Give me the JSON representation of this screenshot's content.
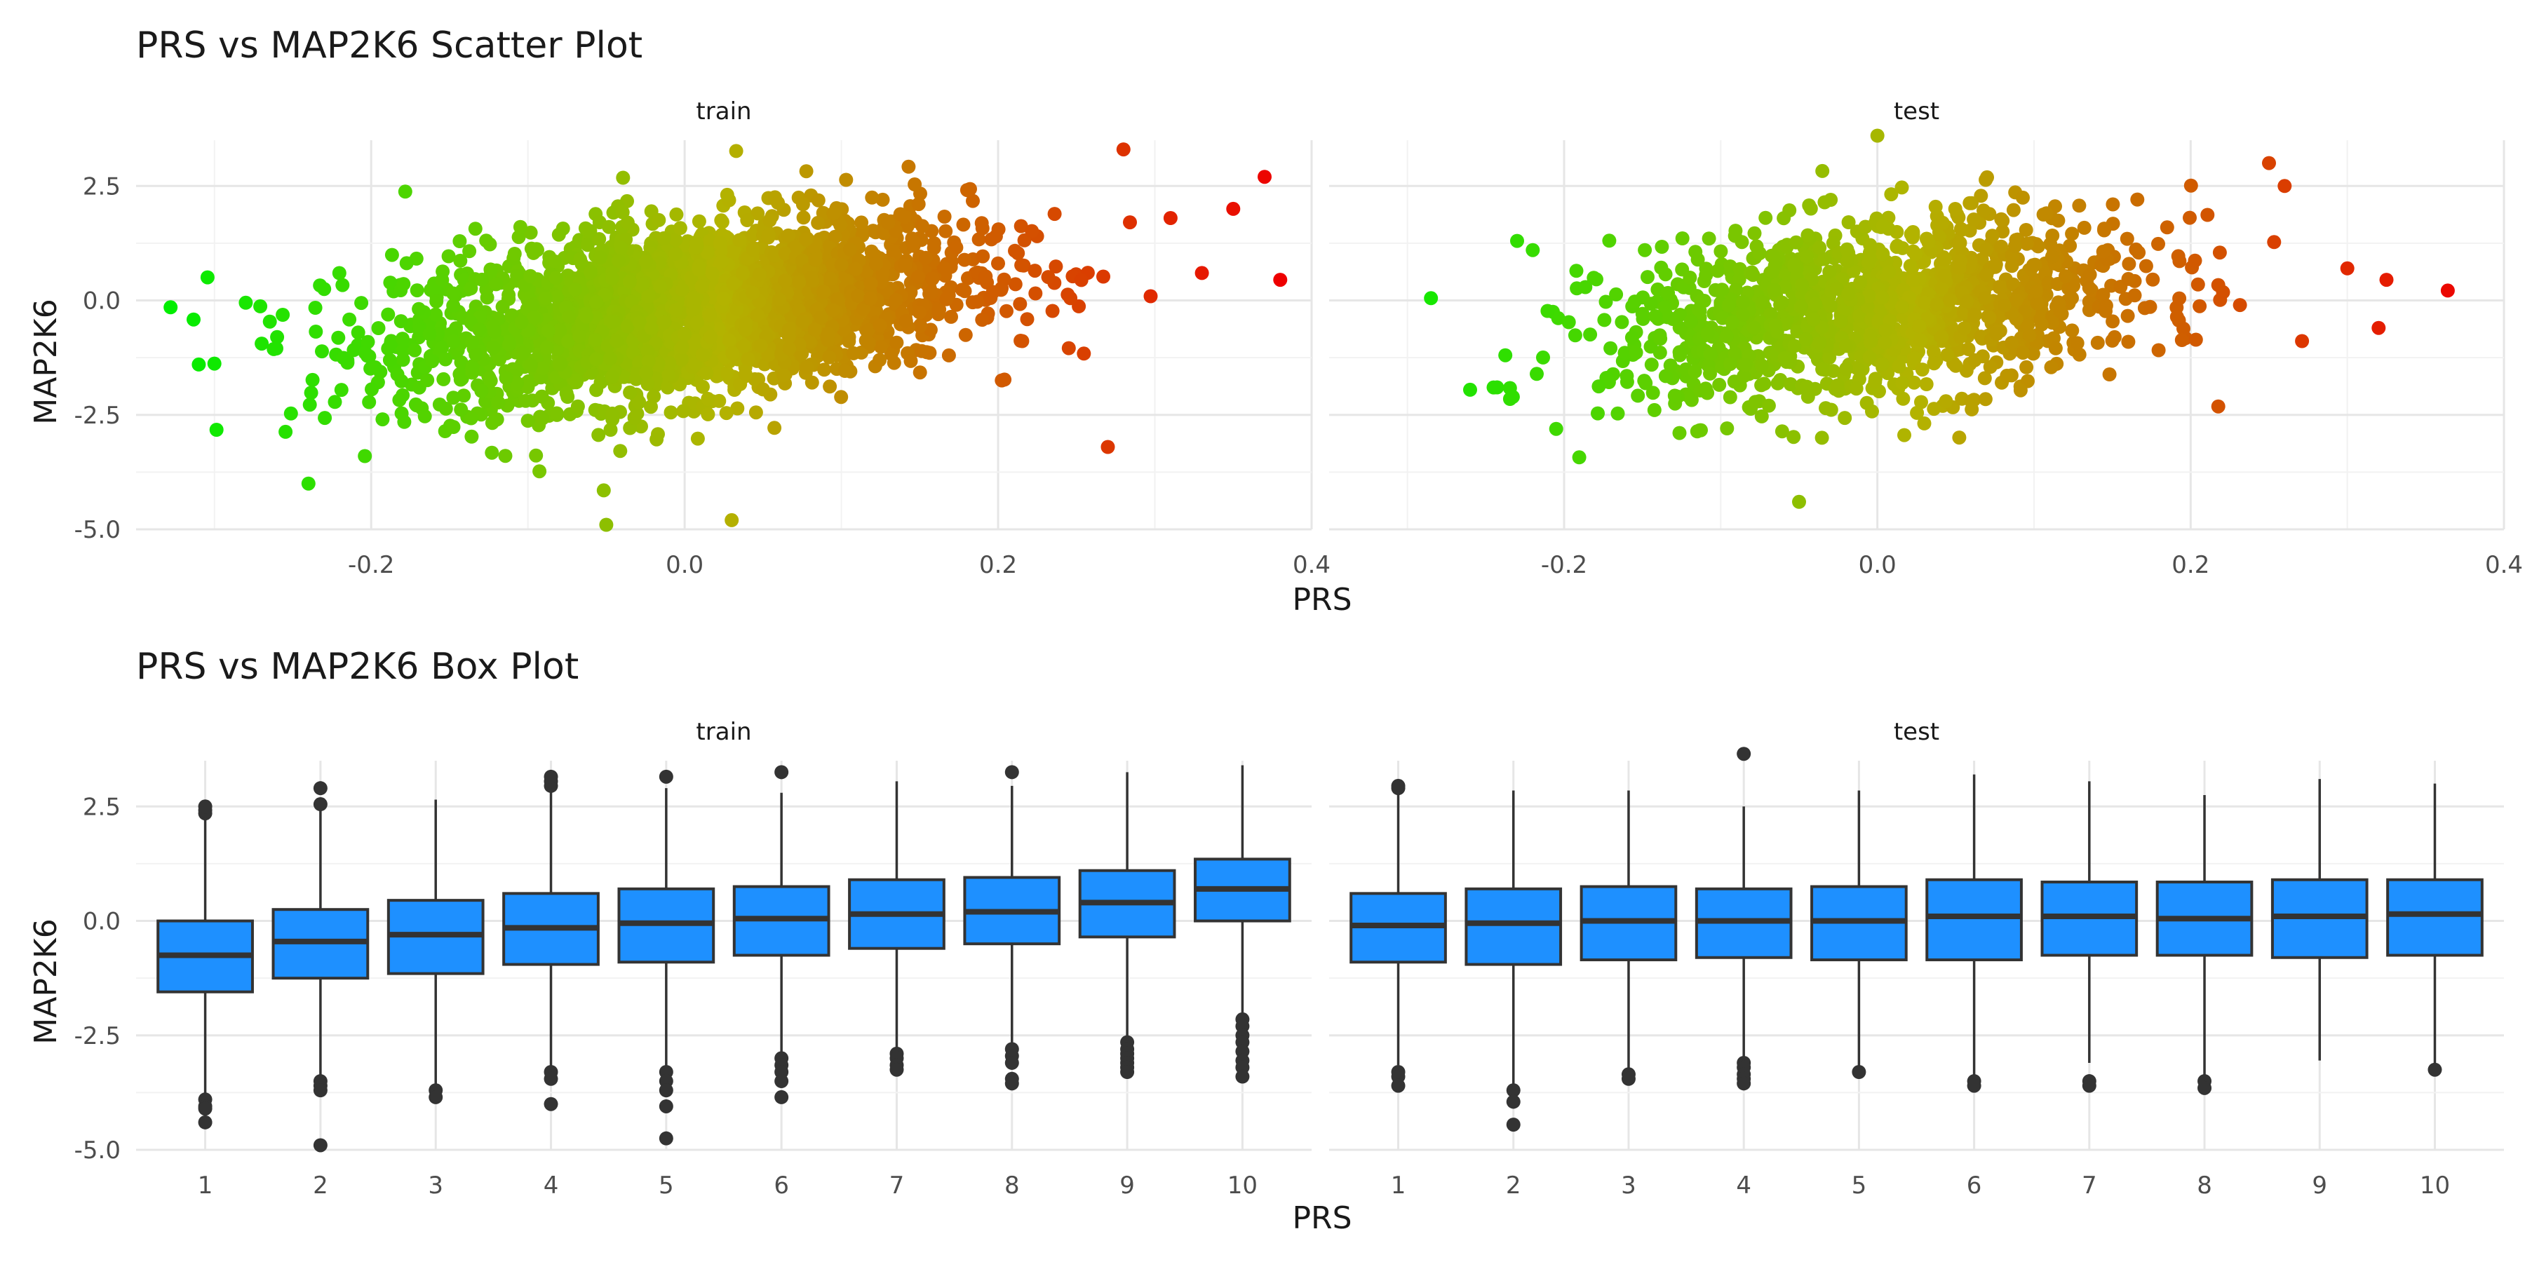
{
  "chart_data": [
    {
      "type": "scatter",
      "title": "PRS vs MAP2K6 Scatter Plot",
      "xlabel": "PRS",
      "ylabel": "MAP2K6",
      "panels": [
        "train",
        "test"
      ],
      "xlim": [
        -0.35,
        0.4
      ],
      "ylim": [
        -5.0,
        3.5
      ],
      "x_ticks": [
        -0.2,
        0.0,
        0.2,
        0.4
      ],
      "x_tick_labels": [
        "-0.2",
        "0.0",
        "0.2",
        "0.4"
      ],
      "y_ticks": [
        -5.0,
        -2.5,
        0.0,
        2.5
      ],
      "y_tick_labels": [
        "-5.0",
        "-2.5",
        "0.0",
        "2.5"
      ],
      "color_scale": {
        "low": "#00ee00",
        "mid": "#b3b300",
        "high": "#ee0000",
        "mapped_to": "PRS"
      },
      "series": [
        {
          "panel": "train",
          "n_estimated": 2600,
          "correlation_estimated": 0.37,
          "points_highlight": [
            {
              "x": -0.328,
              "y": -0.15
            },
            {
              "x": -0.31,
              "y": -1.4
            },
            {
              "x": -0.3,
              "y": -1.38
            },
            {
              "x": -0.28,
              "y": -0.05
            },
            {
              "x": -0.26,
              "y": -0.8
            },
            {
              "x": -0.24,
              "y": -4.0
            },
            {
              "x": -0.23,
              "y": 0.25
            },
            {
              "x": 0.27,
              "y": -3.2
            },
            {
              "x": 0.28,
              "y": 3.3
            },
            {
              "x": 0.31,
              "y": 1.8
            },
            {
              "x": 0.33,
              "y": 0.6
            },
            {
              "x": 0.35,
              "y": 2.0
            },
            {
              "x": 0.37,
              "y": 2.7
            },
            {
              "x": 0.38,
              "y": 0.45
            },
            {
              "x": -0.05,
              "y": -4.9
            },
            {
              "x": 0.03,
              "y": -4.8
            }
          ]
        },
        {
          "panel": "test",
          "n_estimated": 1300,
          "correlation_estimated": 0.3,
          "points_highlight": [
            {
              "x": -0.285,
              "y": 0.05
            },
            {
              "x": -0.26,
              "y": -1.95
            },
            {
              "x": -0.245,
              "y": -1.9
            },
            {
              "x": -0.23,
              "y": 1.3
            },
            {
              "x": -0.22,
              "y": 1.1
            },
            {
              "x": -0.05,
              "y": -4.4
            },
            {
              "x": 0.0,
              "y": 3.6
            },
            {
              "x": 0.3,
              "y": 0.7
            },
            {
              "x": 0.32,
              "y": -0.6
            },
            {
              "x": 0.325,
              "y": 0.45
            },
            {
              "x": 0.26,
              "y": 2.5
            },
            {
              "x": 0.25,
              "y": 3.0
            }
          ]
        }
      ]
    },
    {
      "type": "box",
      "title": "PRS vs MAP2K6 Box Plot",
      "xlabel": "PRS",
      "ylabel": "MAP2K6",
      "panels": [
        "train",
        "test"
      ],
      "ylim": [
        -5.0,
        3.5
      ],
      "y_ticks": [
        -5.0,
        -2.5,
        0.0,
        2.5
      ],
      "y_tick_labels": [
        "-5.0",
        "-2.5",
        "0.0",
        "2.5"
      ],
      "categories": [
        "1",
        "2",
        "3",
        "4",
        "5",
        "6",
        "7",
        "8",
        "9",
        "10"
      ],
      "box_color": "#1e90ff",
      "series": [
        {
          "panel": "train",
          "boxes": [
            {
              "q1": -1.55,
              "median": -0.75,
              "q3": 0.0,
              "whisker_low": -3.85,
              "whisker_high": 2.3,
              "outliers": [
                2.35,
                2.42,
                2.5,
                -3.9,
                -4.05,
                -4.1,
                -4.4
              ]
            },
            {
              "q1": -1.25,
              "median": -0.45,
              "q3": 0.25,
              "whisker_low": -3.4,
              "whisker_high": 2.5,
              "outliers": [
                2.55,
                2.9,
                -3.5,
                -3.6,
                -3.7,
                -4.9
              ]
            },
            {
              "q1": -1.15,
              "median": -0.3,
              "q3": 0.45,
              "whisker_low": -3.6,
              "whisker_high": 2.65,
              "outliers": [
                -3.7,
                -3.85
              ]
            },
            {
              "q1": -0.95,
              "median": -0.15,
              "q3": 0.6,
              "whisker_low": -3.2,
              "whisker_high": 2.9,
              "outliers": [
                2.95,
                3.05,
                3.15,
                -3.3,
                -3.45,
                -4.0
              ]
            },
            {
              "q1": -0.9,
              "median": -0.05,
              "q3": 0.7,
              "whisker_low": -3.2,
              "whisker_high": 2.9,
              "outliers": [
                3.15,
                -3.3,
                -3.5,
                -3.7,
                -4.05,
                -4.75
              ]
            },
            {
              "q1": -0.75,
              "median": 0.05,
              "q3": 0.75,
              "whisker_low": -2.9,
              "whisker_high": 2.8,
              "outliers": [
                3.25,
                -3.0,
                -3.15,
                -3.3,
                -3.5,
                -3.85
              ]
            },
            {
              "q1": -0.6,
              "median": 0.15,
              "q3": 0.9,
              "whisker_low": -2.8,
              "whisker_high": 3.05,
              "outliers": [
                -2.9,
                -3.0,
                -3.15,
                -3.25
              ]
            },
            {
              "q1": -0.5,
              "median": 0.2,
              "q3": 0.95,
              "whisker_low": -2.7,
              "whisker_high": 2.95,
              "outliers": [
                3.25,
                -2.8,
                -2.95,
                -3.1,
                -3.45,
                -3.55
              ]
            },
            {
              "q1": -0.35,
              "median": 0.4,
              "q3": 1.1,
              "whisker_low": -2.55,
              "whisker_high": 3.25,
              "outliers": [
                -2.65,
                -2.8,
                -2.9,
                -3.0,
                -3.1,
                -3.2,
                -3.3
              ]
            },
            {
              "q1": 0.0,
              "median": 0.7,
              "q3": 1.35,
              "whisker_low": -2.05,
              "whisker_high": 3.4,
              "outliers": [
                -2.15,
                -2.3,
                -2.5,
                -2.65,
                -2.85,
                -3.05,
                -3.2,
                -3.4
              ]
            }
          ]
        },
        {
          "panel": "test",
          "boxes": [
            {
              "q1": -0.9,
              "median": -0.1,
              "q3": 0.6,
              "whisker_low": -3.15,
              "whisker_high": 2.85,
              "outliers": [
                2.9,
                2.95,
                -3.3,
                -3.4,
                -3.6
              ]
            },
            {
              "q1": -0.95,
              "median": -0.05,
              "q3": 0.7,
              "whisker_low": -3.6,
              "whisker_high": 2.85,
              "outliers": [
                -3.7,
                -3.95,
                -4.45
              ]
            },
            {
              "q1": -0.85,
              "median": 0.0,
              "q3": 0.75,
              "whisker_low": -3.25,
              "whisker_high": 2.85,
              "outliers": [
                -3.35,
                -3.45
              ]
            },
            {
              "q1": -0.8,
              "median": 0.0,
              "q3": 0.7,
              "whisker_low": -3.0,
              "whisker_high": 2.5,
              "outliers": [
                3.65,
                -3.1,
                -3.2,
                -3.35,
                -3.45,
                -3.55
              ]
            },
            {
              "q1": -0.85,
              "median": 0.0,
              "q3": 0.75,
              "whisker_low": -3.2,
              "whisker_high": 2.85,
              "outliers": [
                -3.3
              ]
            },
            {
              "q1": -0.85,
              "median": 0.1,
              "q3": 0.9,
              "whisker_low": -3.4,
              "whisker_high": 3.2,
              "outliers": [
                -3.5,
                -3.6
              ]
            },
            {
              "q1": -0.75,
              "median": 0.1,
              "q3": 0.85,
              "whisker_low": -3.1,
              "whisker_high": 3.05,
              "outliers": [
                -3.5,
                -3.6
              ]
            },
            {
              "q1": -0.75,
              "median": 0.05,
              "q3": 0.85,
              "whisker_low": -3.4,
              "whisker_high": 2.75,
              "outliers": [
                -3.5,
                -3.65
              ]
            },
            {
              "q1": -0.8,
              "median": 0.1,
              "q3": 0.9,
              "whisker_low": -3.05,
              "whisker_high": 3.1,
              "outliers": []
            },
            {
              "q1": -0.75,
              "median": 0.15,
              "q3": 0.9,
              "whisker_low": -3.15,
              "whisker_high": 3.0,
              "outliers": [
                -3.25
              ]
            }
          ]
        }
      ]
    }
  ]
}
